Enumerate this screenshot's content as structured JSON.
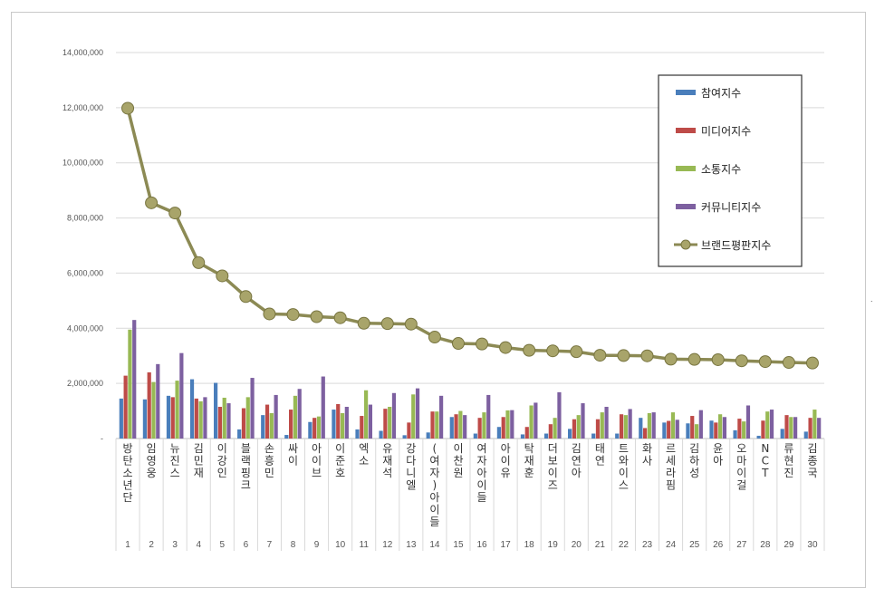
{
  "chart_data": {
    "type": "bar",
    "ylim": [
      0,
      14000000
    ],
    "yticks": [
      "-",
      "2,000,000",
      "4,000,000",
      "6,000,000",
      "8,000,000",
      "10,000,000",
      "12,000,000",
      "14,000,000"
    ],
    "grid": true,
    "legend_position": "top-right",
    "categories": [
      "방탄소년단",
      "임영웅",
      "뉴진스",
      "김민재",
      "이강인",
      "블랙핑크",
      "손흥민",
      "싸이",
      "아이브",
      "이준호",
      "엑소",
      "유재석",
      "강다니엘",
      "(여자)아이들",
      "이찬원",
      "여자아이들",
      "아이유",
      "탁재훈",
      "더보이즈",
      "김연아",
      "태연",
      "트와이스",
      "화사",
      "르세라핌",
      "김하성",
      "윤아",
      "오마이걸",
      "NCT",
      "류현진",
      "김종국"
    ],
    "ranks": [
      "1",
      "2",
      "3",
      "4",
      "5",
      "6",
      "7",
      "8",
      "9",
      "10",
      "11",
      "12",
      "13",
      "14",
      "15",
      "16",
      "17",
      "18",
      "19",
      "20",
      "21",
      "22",
      "23",
      "24",
      "25",
      "26",
      "27",
      "28",
      "29",
      "30"
    ],
    "series": [
      {
        "name": "참여지수",
        "type": "bar",
        "color": "#4a7ebb",
        "values": [
          1450000,
          1420000,
          1550000,
          2150000,
          2020000,
          330000,
          850000,
          130000,
          600000,
          1050000,
          330000,
          280000,
          120000,
          220000,
          780000,
          180000,
          420000,
          150000,
          180000,
          350000,
          180000,
          180000,
          750000,
          580000,
          550000,
          650000,
          300000,
          100000,
          350000,
          250000
        ]
      },
      {
        "name": "미디어지수",
        "type": "bar",
        "color": "#be4b48",
        "values": [
          2280000,
          2400000,
          1500000,
          1450000,
          1150000,
          1100000,
          1230000,
          1050000,
          750000,
          1250000,
          820000,
          1080000,
          580000,
          980000,
          880000,
          750000,
          780000,
          420000,
          520000,
          700000,
          700000,
          880000,
          380000,
          640000,
          820000,
          580000,
          720000,
          650000,
          850000,
          750000
        ]
      },
      {
        "name": "소통지수",
        "type": "bar",
        "color": "#98b954",
        "values": [
          3950000,
          2050000,
          2100000,
          1350000,
          1480000,
          1500000,
          920000,
          1550000,
          800000,
          920000,
          1750000,
          1150000,
          1600000,
          980000,
          1000000,
          950000,
          1020000,
          1200000,
          750000,
          850000,
          950000,
          850000,
          920000,
          950000,
          520000,
          880000,
          620000,
          980000,
          780000,
          1050000
        ]
      },
      {
        "name": "커뮤니티지수",
        "type": "bar",
        "color": "#7d60a0",
        "values": [
          4300000,
          2700000,
          3100000,
          1500000,
          1280000,
          2200000,
          1580000,
          1800000,
          2250000,
          1150000,
          1230000,
          1650000,
          1820000,
          1550000,
          850000,
          1580000,
          1030000,
          1300000,
          1680000,
          1280000,
          1150000,
          1070000,
          950000,
          680000,
          1030000,
          780000,
          1200000,
          1050000,
          780000,
          750000
        ]
      },
      {
        "name": "브랜드평판지수",
        "type": "line",
        "color": "#8c8a54",
        "values": [
          11980000,
          8550000,
          8180000,
          6380000,
          5900000,
          5150000,
          4520000,
          4500000,
          4420000,
          4380000,
          4180000,
          4170000,
          4150000,
          3680000,
          3450000,
          3430000,
          3300000,
          3200000,
          3180000,
          3150000,
          3020000,
          3010000,
          3000000,
          2880000,
          2870000,
          2860000,
          2820000,
          2790000,
          2760000,
          2740000
        ]
      }
    ]
  },
  "stray_mark": "."
}
